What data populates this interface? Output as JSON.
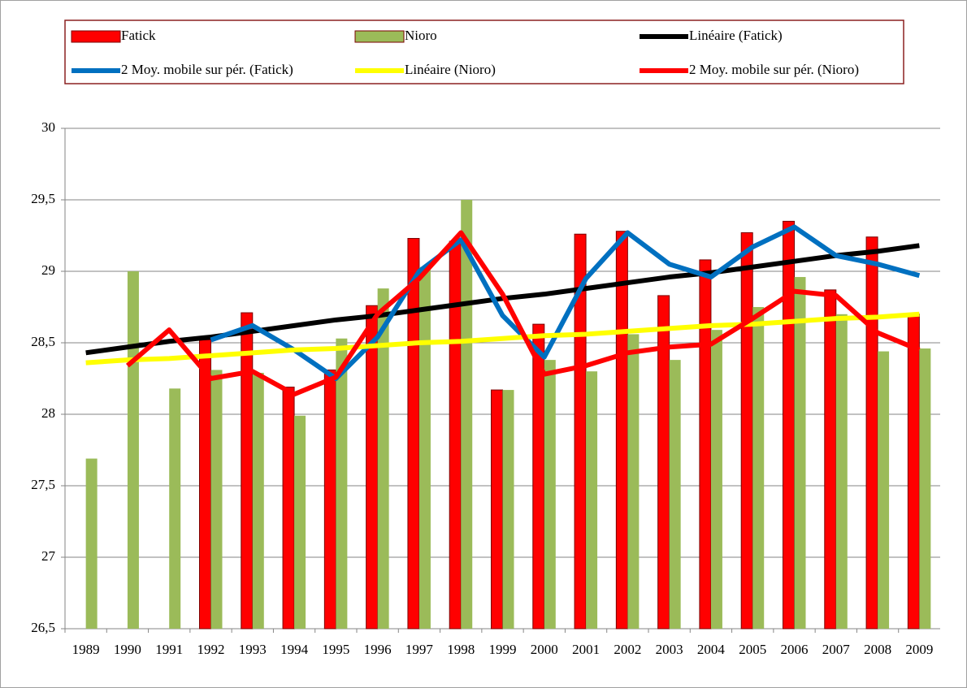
{
  "chart_data": {
    "type": "bar",
    "categories": [
      "1989",
      "1990",
      "1991",
      "1992",
      "1993",
      "1994",
      "1995",
      "1996",
      "1997",
      "1998",
      "1999",
      "2000",
      "2001",
      "2002",
      "2003",
      "2004",
      "2005",
      "2006",
      "2007",
      "2008",
      "2009"
    ],
    "series": [
      {
        "name": "Fatick",
        "type": "bar",
        "color": "#ff0000",
        "values": [
          null,
          null,
          null,
          28.52,
          28.71,
          28.19,
          28.31,
          28.76,
          29.23,
          29.21,
          28.17,
          28.63,
          29.26,
          29.28,
          28.83,
          29.08,
          29.27,
          29.35,
          28.87,
          29.24,
          28.7
        ]
      },
      {
        "name": "Nioro",
        "type": "bar",
        "color": "#9bbb59",
        "values": [
          27.69,
          29.0,
          28.18,
          28.31,
          28.29,
          27.99,
          28.53,
          28.88,
          29.03,
          29.5,
          28.17,
          28.38,
          28.3,
          28.56,
          28.38,
          28.59,
          28.75,
          28.96,
          28.7,
          28.44,
          28.46
        ]
      },
      {
        "name": "Linéaire (Fatick)",
        "type": "line",
        "color": "#000000",
        "values": [
          28.43,
          28.47,
          28.51,
          28.54,
          28.58,
          28.62,
          28.66,
          28.69,
          28.73,
          28.77,
          28.81,
          28.84,
          28.88,
          28.92,
          28.96,
          28.99,
          29.03,
          29.07,
          29.11,
          29.14,
          29.18
        ]
      },
      {
        "name": "2 Moy. mobile sur pér. (Fatick)",
        "type": "line",
        "color": "#0070c0",
        "values": [
          null,
          null,
          null,
          28.52,
          28.62,
          28.45,
          28.25,
          28.54,
          29.0,
          29.22,
          28.69,
          28.4,
          28.95,
          29.27,
          29.05,
          28.96,
          29.17,
          29.31,
          29.11,
          29.05,
          28.97
        ]
      },
      {
        "name": "Linéaire (Nioro)",
        "type": "line",
        "color": "#ffff00",
        "values": [
          28.36,
          28.38,
          28.39,
          28.41,
          28.43,
          28.45,
          28.46,
          28.48,
          28.5,
          28.51,
          28.53,
          28.55,
          28.56,
          28.58,
          28.6,
          28.62,
          28.63,
          28.65,
          28.67,
          28.68,
          28.7
        ]
      },
      {
        "name": "2 Moy. mobile sur pér. (Nioro)",
        "type": "line",
        "color": "#ff0000",
        "values": [
          null,
          28.34,
          28.59,
          28.25,
          28.3,
          28.14,
          28.26,
          28.7,
          28.95,
          29.27,
          28.84,
          28.28,
          28.34,
          28.43,
          28.47,
          28.49,
          28.67,
          28.86,
          28.83,
          28.57,
          28.45
        ]
      }
    ],
    "ylim": [
      26.5,
      30
    ],
    "yticks": [
      {
        "value": 26.5,
        "label": "26,5"
      },
      27,
      {
        "value": 27.5,
        "label": "27,5"
      },
      28,
      {
        "value": 28.5,
        "label": "28,5"
      },
      29,
      {
        "value": 29.5,
        "label": "29,5"
      },
      30
    ],
    "grid": true
  }
}
